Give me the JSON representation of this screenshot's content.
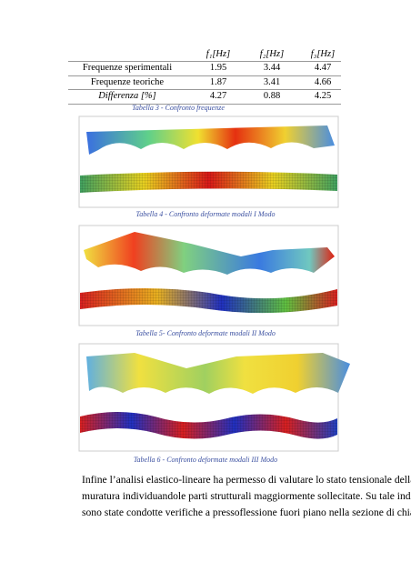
{
  "table": {
    "headers": [
      "f₁[Hz]",
      "f₂[Hz]",
      "f₃[Hz]"
    ],
    "rows": [
      [
        "Frequenze sperimentali",
        "1.95",
        "3.44",
        "4.47"
      ],
      [
        "Frequenze teoriche",
        "1.87",
        "3.41",
        "4.66"
      ],
      [
        "Differenza [%]",
        "4.27",
        "0.88",
        "4.25"
      ]
    ],
    "caption": "Tabella 3 - Confronto frequenze"
  },
  "figures": [
    {
      "caption": "Tabella 4 - Confronto deformate modali I Modo"
    },
    {
      "caption": "Tabella 5- Confronto deformate modali II Modo"
    },
    {
      "caption": "Tabella 6 - Confronto deformate modali III Modo"
    }
  ],
  "paragraph": {
    "lines": [
      "Infine l’analisi elastico-lineare ha permesso di valutare lo stato tensionale della",
      "muratura individuandole parti strutturali maggiormente sollecitate. Su tale indicazione",
      "sono state condotte verifiche a pressoflessione fuori piano nella sezione di chiave in"
    ]
  }
}
